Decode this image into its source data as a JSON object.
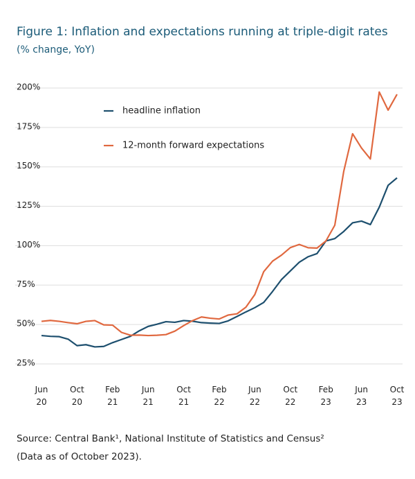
{
  "chart_data": {
    "type": "line",
    "title": "Figure 1: Inflation and expectations running at triple-digit rates",
    "subtitle": "(% change, YoY)",
    "categories": [
      "Jun 20",
      null,
      null,
      null,
      "Oct 20",
      null,
      null,
      null,
      "Feb 21",
      null,
      null,
      null,
      "Jun 21",
      null,
      null,
      null,
      "Oct 21",
      null,
      null,
      null,
      "Feb 22",
      null,
      null,
      null,
      "Jun 22",
      null,
      null,
      null,
      "Oct 22",
      null,
      null,
      null,
      "Feb 23",
      null,
      null,
      null,
      "Jun 23",
      null,
      null,
      null,
      "Oct 23"
    ],
    "series": [
      {
        "name": "headline inflation",
        "color": "#1d4f6e",
        "values": [
          43,
          42.5,
          42.3,
          40.7,
          36.6,
          37.2,
          35.8,
          36.1,
          38.5,
          40.5,
          42.5,
          46,
          48.8,
          50.2,
          51.8,
          51.4,
          52.5,
          52.1,
          51.2,
          50.9,
          50.7,
          52.3,
          55.1,
          58,
          60.7,
          64,
          71,
          78.5,
          84,
          89.5,
          93,
          95,
          103,
          104.5,
          109,
          114.5,
          115.6,
          113.4,
          124.4,
          138.3,
          143
        ]
      },
      {
        "name": "12-month forward expectations",
        "color": "#e0683f",
        "values": [
          52,
          52.6,
          52,
          51.2,
          50.5,
          52,
          52.5,
          49.8,
          49.6,
          45,
          43.2,
          43.3,
          43,
          43.2,
          43.6,
          45.8,
          49.3,
          52.5,
          54.8,
          54,
          53.5,
          56,
          56.8,
          61,
          69,
          83.5,
          90.2,
          94,
          98.8,
          100.8,
          98.7,
          98.5,
          103,
          113,
          147,
          171,
          162,
          155,
          197.5,
          186,
          196
        ]
      }
    ],
    "ylim": [
      25,
      200
    ],
    "yticks": [
      {
        "value": 25,
        "label": "25%"
      },
      {
        "value": 50,
        "label": "50%"
      },
      {
        "value": 75,
        "label": "75%"
      },
      {
        "value": 100,
        "label": "100%"
      },
      {
        "value": 125,
        "label": "125%"
      },
      {
        "value": 150,
        "label": "150%"
      },
      {
        "value": 175,
        "label": "175%"
      },
      {
        "value": 200,
        "label": "200%"
      }
    ],
    "grid": true,
    "legend": "upper-left",
    "source": [
      "Source: Central Bank¹, National Institute of Statistics and Census²",
      "(Data as of October 2023)."
    ]
  }
}
